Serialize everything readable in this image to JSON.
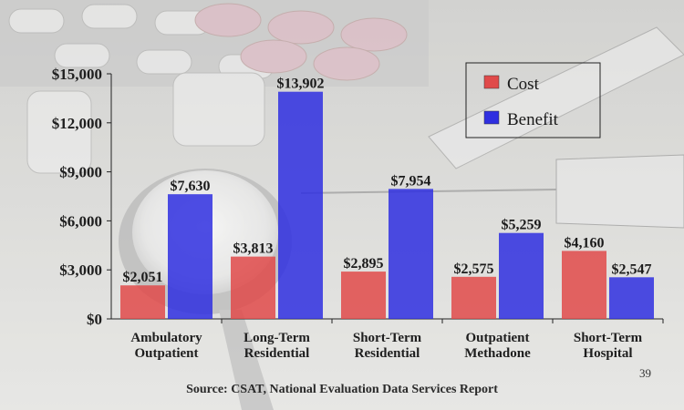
{
  "chart_data": {
    "type": "bar",
    "categories": [
      [
        "Ambulatory",
        "Outpatient"
      ],
      [
        "Long-Term",
        "Residential"
      ],
      [
        "Short-Term",
        "Residential"
      ],
      [
        "Outpatient",
        "Methadone"
      ],
      [
        "Short-Term",
        "Hospital"
      ]
    ],
    "series": [
      {
        "name": "Cost",
        "values": [
          2051,
          3813,
          2895,
          2575,
          4160
        ],
        "labels": [
          "$2,051",
          "$3,813",
          "$2,895",
          "$2,575",
          "$4,160"
        ],
        "color": "#e04a4a"
      },
      {
        "name": "Benefit",
        "values": [
          7630,
          13902,
          7954,
          5259,
          2547
        ],
        "labels": [
          "$7,630",
          "$13,902",
          "$7,954",
          "$5,259",
          "$2,547"
        ],
        "color": "#2f2fe0"
      }
    ],
    "ylim": [
      0,
      15000
    ],
    "yticks": [
      "$0",
      "$3,000",
      "$6,000",
      "$9,000",
      "$12,000",
      "$15,000"
    ],
    "ytick_values": [
      0,
      3000,
      6000,
      9000,
      12000,
      15000
    ],
    "legend_position": "top-right",
    "grid": false
  },
  "footer": {
    "source": "Source:  CSAT, National Evaluation Data Services Report",
    "slide_number": "39"
  },
  "colors": {
    "cost": "#e04a4a",
    "benefit": "#2f2fe0",
    "background": "#d9d9d6"
  },
  "background_image": "photo-of-pills-syringe-and-spoon-with-powder"
}
